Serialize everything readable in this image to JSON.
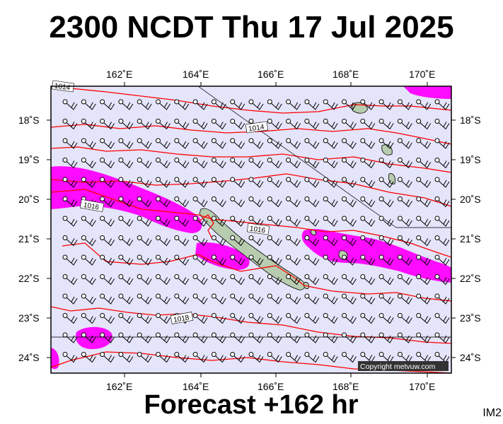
{
  "header": {
    "title": "2300 NCDT Thu 17 Jul 2025"
  },
  "footer": {
    "forecast": "Forecast +162 hr",
    "product_code": "IM2"
  },
  "map": {
    "copyright": "Copyright metvuw.com",
    "lon_labels": [
      "162˚E",
      "164˚E",
      "166˚E",
      "168˚E",
      "170˚E"
    ],
    "lat_labels": [
      "18˚S",
      "19˚S",
      "20˚S",
      "21˚S",
      "22˚S",
      "23˚S",
      "24˚S"
    ],
    "isobar_labels": [
      "1014",
      "1014",
      "1016",
      "1016",
      "1018"
    ],
    "colors": {
      "background": "#e4e4fa",
      "isobar": "#ff0000",
      "rain": "#ff00ff",
      "land": "#b8ccb0"
    }
  }
}
